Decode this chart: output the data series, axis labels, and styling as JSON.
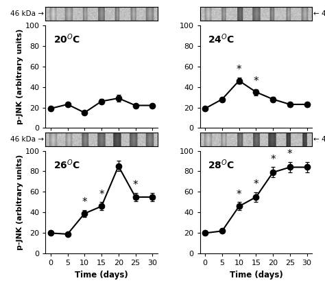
{
  "time_points": [
    0,
    5,
    10,
    15,
    20,
    25,
    30
  ],
  "panels": [
    {
      "label": "20",
      "y": [
        19,
        23,
        15,
        26,
        29,
        22,
        22
      ],
      "yerr": [
        1.5,
        2.0,
        1.5,
        2.5,
        3.5,
        2.0,
        2.0
      ],
      "sig": [
        false,
        false,
        false,
        false,
        false,
        false,
        false
      ],
      "row": 0,
      "col": 0
    },
    {
      "label": "24",
      "y": [
        19,
        28,
        46,
        35,
        28,
        23,
        23
      ],
      "yerr": [
        1.5,
        2.0,
        3.0,
        3.0,
        2.5,
        2.0,
        2.0
      ],
      "sig": [
        false,
        false,
        true,
        true,
        false,
        false,
        false
      ],
      "row": 0,
      "col": 1
    },
    {
      "label": "26",
      "y": [
        20,
        19,
        39,
        46,
        85,
        55,
        55
      ],
      "yerr": [
        2.0,
        1.5,
        3.5,
        4.0,
        5.0,
        4.0,
        4.0
      ],
      "sig": [
        false,
        false,
        true,
        true,
        false,
        true,
        false
      ],
      "row": 1,
      "col": 0
    },
    {
      "label": "28",
      "y": [
        20,
        22,
        46,
        55,
        79,
        84,
        84
      ],
      "yerr": [
        2.0,
        2.0,
        4.0,
        4.5,
        5.0,
        5.0,
        5.0
      ],
      "sig": [
        false,
        false,
        true,
        true,
        true,
        true,
        false
      ],
      "row": 1,
      "col": 1
    }
  ],
  "ylim": [
    0,
    100
  ],
  "yticks": [
    0,
    20,
    40,
    60,
    80,
    100
  ],
  "xticks": [
    0,
    5,
    10,
    15,
    20,
    25,
    30
  ],
  "xlabel": "Time (days)",
  "ylabel": "p-JNK (arbitrary units)",
  "marker_size": 6,
  "linewidth": 1.5,
  "label_fontsize": 10,
  "tick_fontsize": 8,
  "sig_fontsize": 11,
  "kda_fontsize": 7.5,
  "axlabel_fontsize": 8.5
}
